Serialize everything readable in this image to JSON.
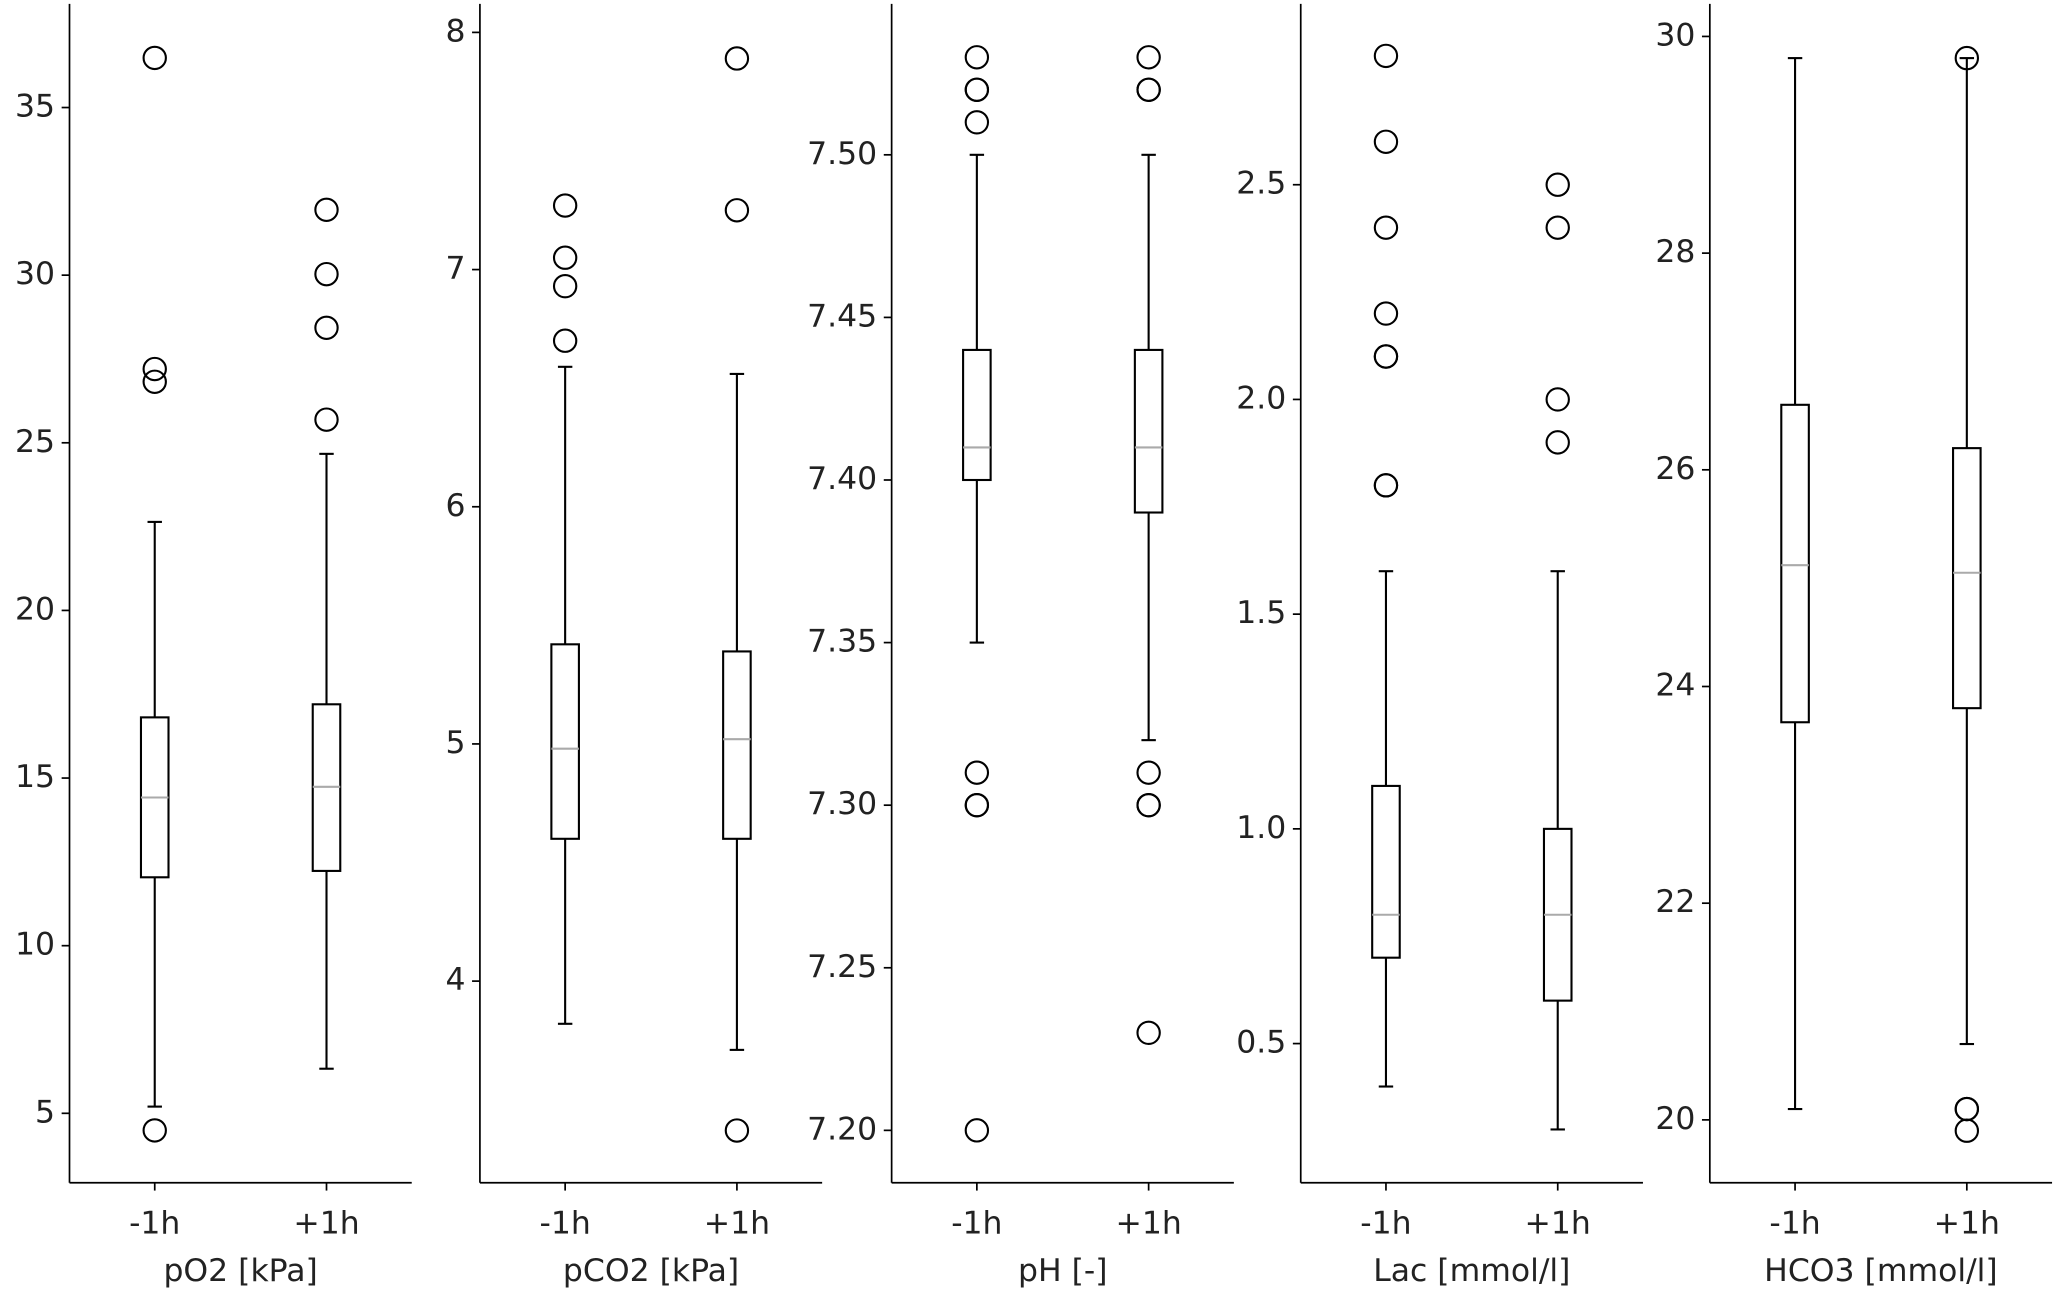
{
  "chart_data": [
    {
      "type": "box",
      "categories": [
        "-1h",
        "+1h"
      ],
      "x_label": "pO2 [kPa]",
      "ylim": [
        2.93,
        38.09
      ],
      "yticks": [
        5,
        10,
        15,
        20,
        25,
        30,
        35
      ],
      "color": "#000000",
      "median_color": "#aaaaaa",
      "boxes": [
        {
          "whislo": 5.2,
          "q1": 12.04,
          "med": 14.42,
          "q3": 16.81,
          "whishi": 22.64,
          "fliers": [
            36.48,
            27.2,
            26.82,
            4.49
          ]
        },
        {
          "whislo": 6.33,
          "q1": 12.23,
          "med": 14.74,
          "q3": 17.2,
          "whishi": 24.67,
          "fliers": [
            31.95,
            30.03,
            28.43,
            25.69
          ]
        }
      ]
    },
    {
      "type": "box",
      "categories": [
        "-1h",
        "+1h"
      ],
      "x_label": "pCO2 [kPa]",
      "ylim": [
        3.15,
        8.12
      ],
      "yticks": [
        4,
        5,
        6,
        7,
        8
      ],
      "color": "#000000",
      "median_color": "#aaaaaa",
      "boxes": [
        {
          "whislo": 3.82,
          "q1": 4.6,
          "med": 4.98,
          "q3": 5.42,
          "whishi": 6.59,
          "fliers": [
            7.27,
            7.05,
            6.93,
            6.7
          ]
        },
        {
          "whislo": 3.71,
          "q1": 4.6,
          "med": 5.02,
          "q3": 5.39,
          "whishi": 6.56,
          "fliers": [
            7.89,
            7.25,
            3.37
          ]
        }
      ]
    },
    {
      "type": "box",
      "categories": [
        "-1h",
        "+1h"
      ],
      "x_label": "pH [-]",
      "ylim": [
        7.1839,
        7.5464
      ],
      "yticks": [
        {
          "value": 7.2,
          "label": "7.20"
        },
        {
          "value": 7.25,
          "label": "7.25"
        },
        {
          "value": 7.3,
          "label": "7.30"
        },
        {
          "value": 7.35,
          "label": "7.35"
        },
        {
          "value": 7.4,
          "label": "7.40"
        },
        {
          "value": 7.45,
          "label": "7.45"
        },
        {
          "value": 7.5,
          "label": "7.50"
        }
      ],
      "color": "#000000",
      "median_color": "#aaaaaa",
      "boxes": [
        {
          "whislo": 7.35,
          "q1": 7.4,
          "med": 7.41,
          "q3": 7.44,
          "whishi": 7.5,
          "fliers": [
            7.53,
            7.52,
            7.52,
            7.51,
            7.31,
            7.3,
            7.3,
            7.2
          ]
        },
        {
          "whislo": 7.32,
          "q1": 7.39,
          "med": 7.41,
          "q3": 7.44,
          "whishi": 7.5,
          "fliers": [
            7.53,
            7.52,
            7.52,
            7.31,
            7.3,
            7.3,
            7.23
          ]
        }
      ]
    },
    {
      "type": "box",
      "categories": [
        "-1h",
        "+1h"
      ],
      "x_label": "Lac [mmol/l]",
      "ylim": [
        0.176,
        2.921
      ],
      "yticks": [
        0.5,
        {
          "value": 1,
          "label": "1.0"
        },
        1.5,
        {
          "value": 2,
          "label": "2.0"
        },
        2.5
      ],
      "color": "#000000",
      "median_color": "#aaaaaa",
      "boxes": [
        {
          "whislo": 0.4,
          "q1": 0.7,
          "med": 0.8,
          "q3": 1.1,
          "whishi": 1.6,
          "fliers": [
            2.8,
            2.6,
            2.4,
            2.2,
            2.1,
            2.1,
            1.8,
            1.8
          ]
        },
        {
          "whislo": 0.3,
          "q1": 0.6,
          "med": 0.8,
          "q3": 1.0,
          "whishi": 1.6,
          "fliers": [
            2.5,
            2.4,
            2.0,
            1.9
          ]
        }
      ]
    },
    {
      "type": "box",
      "categories": [
        "-1h",
        "+1h"
      ],
      "x_label": "HCO3 [mmol/l]",
      "ylim": [
        19.42,
        30.3
      ],
      "yticks": [
        20,
        22,
        24,
        26,
        28,
        30
      ],
      "color": "#000000",
      "median_color": "#aaaaaa",
      "boxes": [
        {
          "whislo": 20.1,
          "q1": 23.67,
          "med": 25.12,
          "q3": 26.6,
          "whishi": 29.8,
          "fliers": []
        },
        {
          "whislo": 20.7,
          "q1": 23.8,
          "med": 25.05,
          "q3": 26.2,
          "whishi": 29.8,
          "fliers": [
            29.8,
            20.1,
            20.1,
            19.9
          ]
        }
      ]
    }
  ]
}
